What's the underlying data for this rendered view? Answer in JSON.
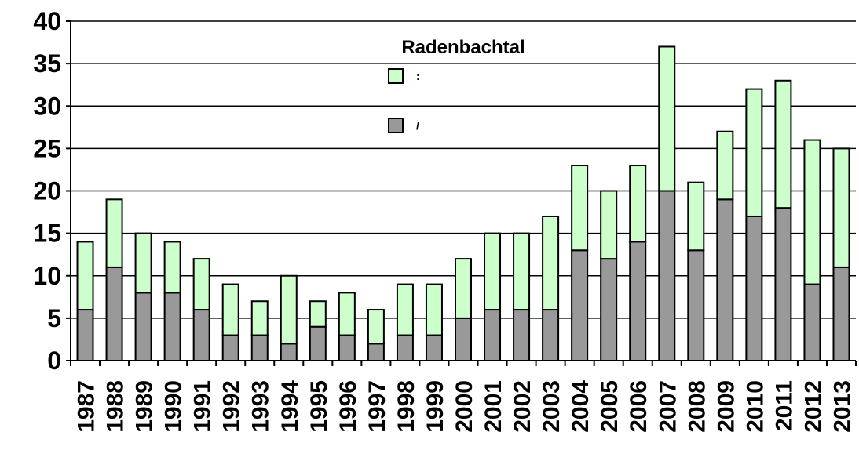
{
  "chart_data": {
    "type": "stacked_bar",
    "title": "Radenbachtal",
    "categories": [
      "1987",
      "1988",
      "1989",
      "1990",
      "1991",
      "1992",
      "1993",
      "1994",
      "1995",
      "1996",
      "1997",
      "1998",
      "1999",
      "2000",
      "2001",
      "2002",
      "2003",
      "2004",
      "2005",
      "2006",
      "2007",
      "2008",
      "2009",
      "2010",
      "2011",
      "2012",
      "2013"
    ],
    "series": [
      {
        "name": "/",
        "color": "#999999",
        "values": [
          6,
          11,
          8,
          8,
          6,
          3,
          3,
          2,
          4,
          3,
          2,
          3,
          3,
          5,
          6,
          6,
          6,
          13,
          12,
          14,
          20,
          13,
          19,
          17,
          18,
          9,
          11
        ]
      },
      {
        "name": ":",
        "color": "#ccffcc",
        "values": [
          8,
          8,
          7,
          6,
          6,
          6,
          4,
          8,
          3,
          5,
          4,
          6,
          6,
          7,
          9,
          9,
          11,
          10,
          8,
          9,
          17,
          8,
          8,
          15,
          15,
          17,
          14
        ]
      }
    ],
    "ylim": [
      0,
      40
    ],
    "yticks": [
      0,
      5,
      10,
      15,
      20,
      25,
      30,
      35,
      40
    ],
    "grid": true
  }
}
